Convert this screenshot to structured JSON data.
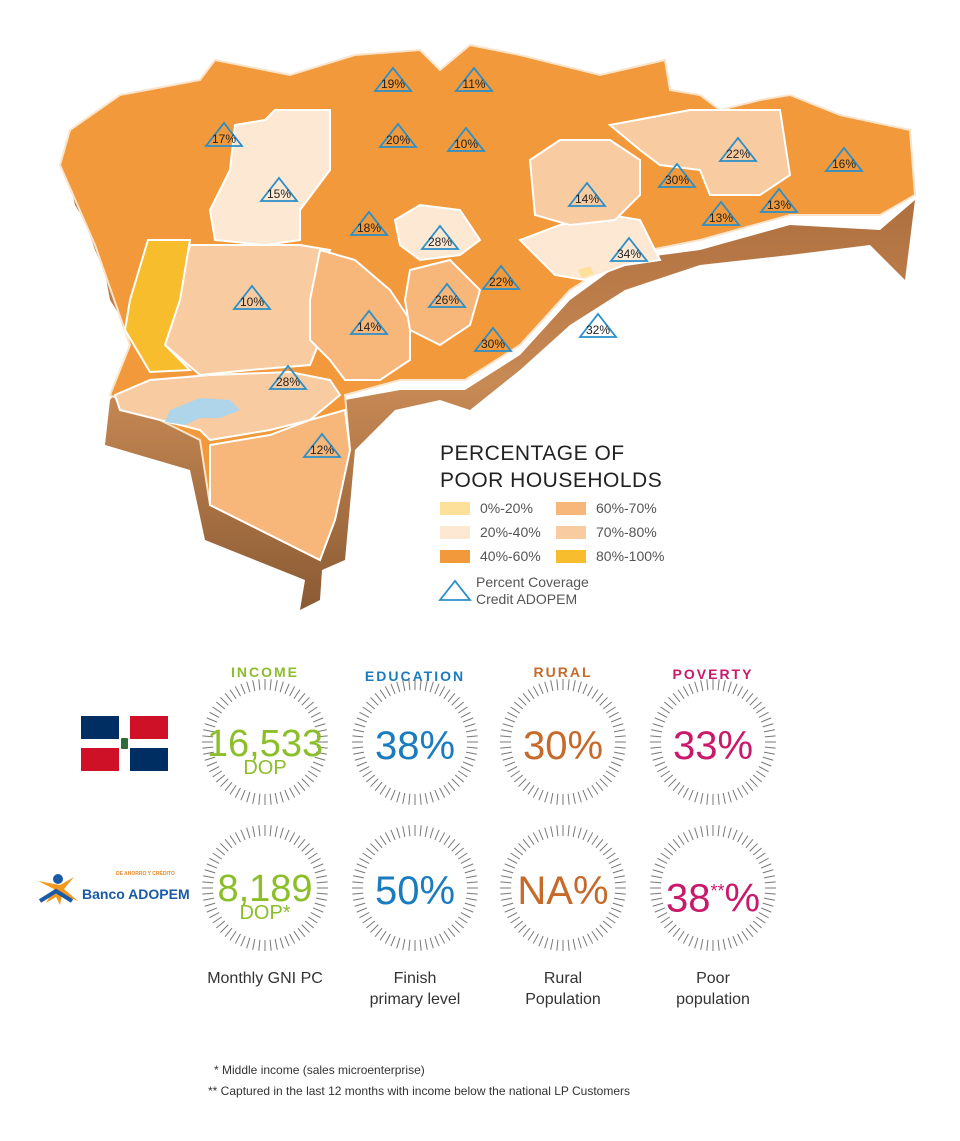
{
  "colors": {
    "p0_20": "#fde19a",
    "p20_40": "#fde8d4",
    "p40_60": "#f1993b",
    "p60_70": "#f7b67a",
    "p70_80": "#f9cba0",
    "p80_100": "#f8bd2c",
    "triangle": "#2b8fc9",
    "income": "#8cbe2a",
    "education": "#1a7bbf",
    "rural": "#c66a2b",
    "poverty": "#c8196b"
  },
  "map": {
    "coverage_labels": [
      "19%",
      "11%",
      "17%",
      "20%",
      "10%",
      "22%",
      "16%",
      "15%",
      "14%",
      "30%",
      "13%",
      "13%",
      "18%",
      "28%",
      "34%",
      "10%",
      "26%",
      "22%",
      "14%",
      "30%",
      "32%",
      "28%",
      "12%"
    ]
  },
  "legend": {
    "title_line1": "PERCENTAGE OF",
    "title_line2": "POOR HOUSEHOLDS",
    "items": [
      "0%-20%",
      "20%-40%",
      "40%-60%",
      "60%-70%",
      "70%-80%",
      "80%-100%"
    ],
    "coverage_line1": "Percent Coverage",
    "coverage_line2": "Credit ADOPEM"
  },
  "logo": {
    "name": "Banco ADOPEM",
    "tagline": "DE AHORRO Y CRÉDITO"
  },
  "stats": {
    "titles": [
      "INCOME",
      "EDUCATION",
      "RURAL",
      "POVERTY"
    ],
    "country": {
      "income": "16,533",
      "income_unit": "DOP",
      "education": "38%",
      "rural": "30%",
      "poverty": "33%"
    },
    "adopem": {
      "income": "8,189",
      "income_unit": "DOP*",
      "education": "50%",
      "rural": "NA%",
      "poverty_num": "38",
      "poverty_mark": "**",
      "poverty_pct": "%"
    },
    "captions": {
      "income": "Monthly GNI PC",
      "education_1": "Finish",
      "education_2": "primary level",
      "rural_1": "Rural",
      "rural_2": "Population",
      "poverty_1": "Poor",
      "poverty_2": "population"
    }
  },
  "footnotes": {
    "note1": "* Middle income (sales microenterprise)",
    "note2": "** Captured in the last 12 months with income below the national LP Customers"
  }
}
